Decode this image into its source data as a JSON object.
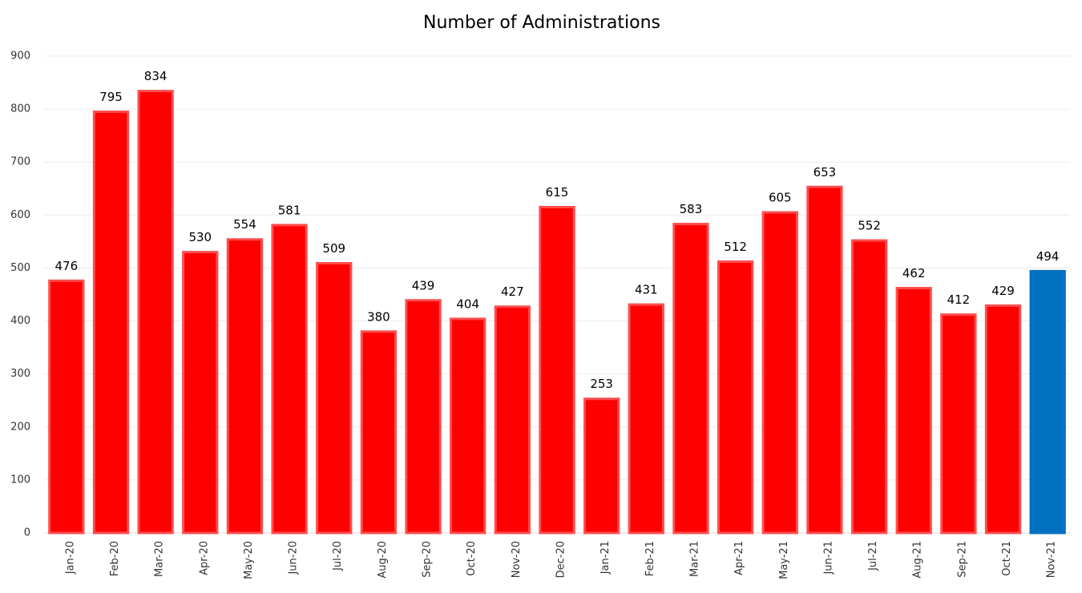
{
  "chart_data": {
    "type": "bar",
    "title": "Number of Administrations",
    "categories": [
      "Jan-20",
      "Feb-20",
      "Mar-20",
      "Apr-20",
      "May-20",
      "Jun-20",
      "Jul-20",
      "Aug-20",
      "Sep-20",
      "Oct-20",
      "Nov-20",
      "Dec-20",
      "Jan-21",
      "Feb-21",
      "Mar-21",
      "Apr-21",
      "May-21",
      "Jun-21",
      "Jul-21",
      "Aug-21",
      "Sep-21",
      "Oct-21",
      "Nov-21"
    ],
    "values": [
      476,
      795,
      834,
      530,
      554,
      581,
      509,
      380,
      439,
      404,
      427,
      615,
      253,
      431,
      583,
      512,
      605,
      653,
      552,
      462,
      412,
      429,
      494
    ],
    "colors": [
      "#ff0000",
      "#ff0000",
      "#ff0000",
      "#ff0000",
      "#ff0000",
      "#ff0000",
      "#ff0000",
      "#ff0000",
      "#ff0000",
      "#ff0000",
      "#ff0000",
      "#ff0000",
      "#ff0000",
      "#ff0000",
      "#ff0000",
      "#ff0000",
      "#ff0000",
      "#ff0000",
      "#ff0000",
      "#ff0000",
      "#ff0000",
      "#ff0000",
      "#0070c0"
    ],
    "ylim": [
      0,
      900
    ],
    "yticks": [
      0,
      100,
      200,
      300,
      400,
      500,
      600,
      700,
      800,
      900
    ],
    "grid": true
  }
}
